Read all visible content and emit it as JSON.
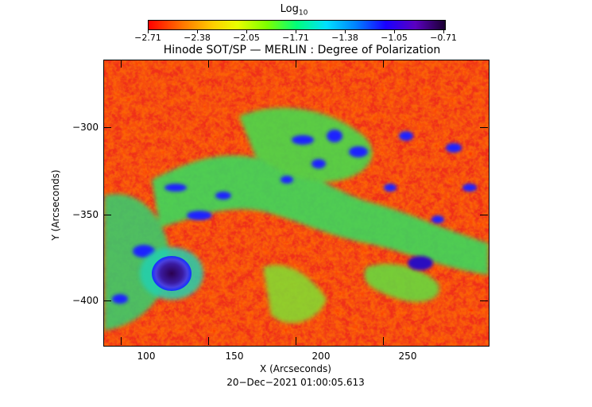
{
  "colorbar": {
    "title": "Log",
    "title_sub": "10",
    "tick_labels": [
      "−2.71",
      "−2.38",
      "−2.05",
      "−1.71",
      "−1.38",
      "−1.05",
      "−0.71"
    ]
  },
  "plot": {
    "title": "Hinode SOT/SP — MERLIN : Degree of Polarization",
    "xlabel": "X (Arcseconds)",
    "ylabel": "Y (Arcseconds)",
    "x_ticks": [
      "100",
      "150",
      "200",
      "250"
    ],
    "y_ticks": [
      "−300",
      "−350",
      "−400"
    ],
    "timestamp": "20−Dec−2021 01:00:05.613"
  }
}
